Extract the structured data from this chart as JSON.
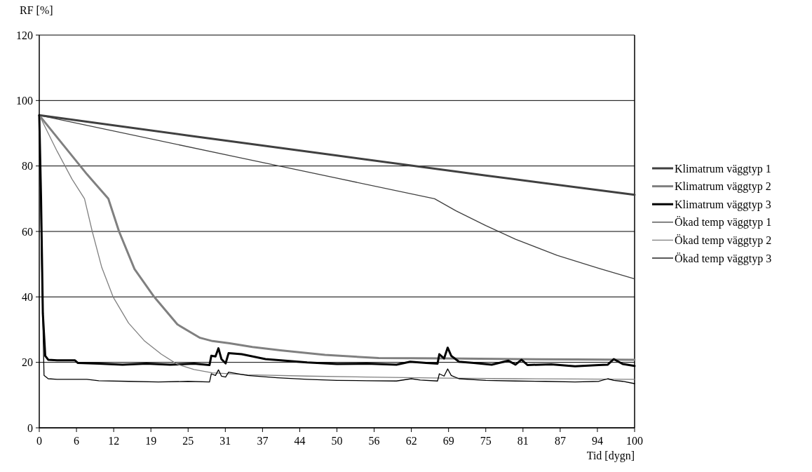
{
  "chart_data": {
    "type": "line",
    "ylabel": "RF [%]",
    "xlabel": "Tid [dygn]",
    "xlim": [
      0,
      100
    ],
    "ylim": [
      0,
      120
    ],
    "yticks": [
      0,
      20,
      40,
      60,
      80,
      100,
      120
    ],
    "xticks": [
      0,
      {
        "value": 6.25,
        "label": "6"
      },
      {
        "value": 12.5,
        "label": "12"
      },
      {
        "value": 18.75,
        "label": "19"
      },
      25,
      {
        "value": 31.25,
        "label": "31"
      },
      {
        "value": 37.5,
        "label": "37"
      },
      {
        "value": 43.75,
        "label": "44"
      },
      50,
      {
        "value": 56.25,
        "label": "56"
      },
      {
        "value": 62.5,
        "label": "62"
      },
      {
        "value": 68.75,
        "label": "69"
      },
      75,
      {
        "value": 81.25,
        "label": "81"
      },
      {
        "value": 87.5,
        "label": "87"
      },
      {
        "value": 93.75,
        "label": "94"
      },
      100
    ],
    "grid": "y",
    "legend": "right",
    "marker": "none",
    "line_style": "solid",
    "series": [
      {
        "name": "Klimatrum väggtyp 1",
        "color": "#404040",
        "x": [
          0,
          25,
          50,
          75,
          100
        ],
        "values": [
          95.5,
          89.3,
          83.2,
          77.1,
          71.2
        ]
      },
      {
        "name": "Klimatrum väggtyp 2",
        "color": "#808080",
        "x": [
          0,
          4,
          8,
          11.6,
          13.4,
          16,
          19.3,
          23.2,
          27,
          29.1,
          32,
          35.8,
          40.5,
          48,
          57,
          68,
          80,
          90,
          100
        ],
        "values": [
          95.5,
          86.5,
          77.5,
          70,
          60,
          48.5,
          40,
          31.6,
          27.5,
          26.5,
          25.8,
          24.7,
          23.7,
          22.3,
          21.3,
          21.2,
          21,
          20.9,
          20.8
        ]
      },
      {
        "name": "Klimatrum väggtyp 3",
        "color": "#000000",
        "x": [
          0,
          0.3,
          0.6,
          1,
          1.5,
          3,
          6,
          6.5,
          10,
          14,
          18,
          22,
          26,
          28.6,
          28.9,
          29.6,
          30.1,
          30.6,
          31.3,
          31.8,
          34,
          38,
          45,
          50,
          55,
          60,
          62.3,
          65,
          66.9,
          67.2,
          68,
          68.6,
          69.2,
          70.5,
          73,
          76,
          78.8,
          80,
          81,
          82,
          86,
          90,
          94,
          95.5,
          96.5,
          98,
          100
        ],
        "values": [
          95.5,
          70,
          35,
          22,
          20.8,
          20.6,
          20.6,
          19.8,
          19.6,
          19.3,
          19.6,
          19.3,
          19.6,
          19.2,
          22,
          21.8,
          24.3,
          21,
          19.7,
          22.8,
          22.5,
          21,
          20,
          19.5,
          19.6,
          19.3,
          20.2,
          19.8,
          19.6,
          22.5,
          21.2,
          24.5,
          22,
          20.2,
          19.8,
          19.3,
          20.5,
          19.3,
          20.8,
          19.2,
          19.4,
          18.8,
          19.2,
          19.3,
          21,
          19.5,
          18.9
        ]
      },
      {
        "name": "Ökad temp väggtyp 1",
        "color": "#404040",
        "x": [
          0,
          33,
          66.4,
          70,
          75,
          80,
          87,
          94,
          100
        ],
        "values": [
          95.5,
          82.8,
          70,
          66.3,
          61.8,
          57.6,
          52.7,
          48.7,
          45.5
        ]
      },
      {
        "name": "Ökad temp väggtyp 2",
        "color": "#808080",
        "x": [
          0,
          3,
          5.5,
          7.6,
          8.9,
          10.5,
          12.4,
          15,
          17.7,
          20.5,
          23.2,
          26,
          29.1,
          35,
          45,
          55,
          68,
          80,
          90,
          100
        ],
        "values": [
          95.5,
          84.5,
          76,
          70,
          60,
          49,
          40,
          32,
          26.5,
          22.5,
          19.4,
          17.8,
          16.8,
          16.2,
          15.8,
          15.5,
          15.2,
          15,
          14.9,
          14.8
        ]
      },
      {
        "name": "Ökad temp väggtyp 3",
        "color": "#000000",
        "x": [
          0,
          0.4,
          0.8,
          1.5,
          3,
          8,
          10,
          15,
          20,
          25,
          28.6,
          28.9,
          29.6,
          30.1,
          30.6,
          31.3,
          31.8,
          35,
          40,
          45,
          50,
          55,
          60,
          62.5,
          64,
          66.9,
          67.2,
          68,
          68.6,
          69.2,
          70.5,
          75,
          80,
          85,
          90,
          94,
          95.5,
          96.5,
          98,
          100
        ],
        "values": [
          95.5,
          50,
          16,
          15,
          14.8,
          14.8,
          14.4,
          14.2,
          14,
          14.2,
          14,
          16.5,
          16,
          17.7,
          15.8,
          15.5,
          17,
          16,
          15.3,
          14.8,
          14.5,
          14.4,
          14.3,
          15,
          14.6,
          14.3,
          16.5,
          15.8,
          18,
          16,
          15,
          14.5,
          14.3,
          14.2,
          14,
          14.2,
          15,
          14.5,
          14.2,
          13.5
        ]
      }
    ]
  }
}
